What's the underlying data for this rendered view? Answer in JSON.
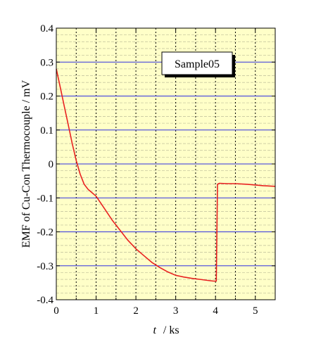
{
  "chart_data": {
    "type": "line",
    "title": "",
    "xlabel": "t  /  ks",
    "xlabel_var": "t",
    "xlabel_unit": "/  ks",
    "ylabel": "EMF of Cu-Con Thermocouple / mV",
    "xlim": [
      0,
      5.5
    ],
    "ylim": [
      -0.4,
      0.4
    ],
    "x_ticks": [
      "0",
      "1",
      "2",
      "3",
      "4",
      "5"
    ],
    "y_ticks": [
      "-0.4",
      "-0.3",
      "-0.2",
      "-0.1",
      "0",
      "0.1",
      "0.2",
      "0.3",
      "0.4"
    ],
    "legend_label": "Sample05",
    "legend_position": "top-right",
    "grid": true,
    "colors": {
      "background": "#ffffc8",
      "line": "#e82020",
      "major_grid": "#3030e0",
      "minor_grid": "#c8c8a0",
      "vertical_grid": "#000000"
    },
    "series": [
      {
        "name": "Sample05",
        "x": [
          0,
          0.1,
          0.2,
          0.3,
          0.4,
          0.5,
          0.6,
          0.7,
          0.8,
          0.9,
          1.0,
          1.2,
          1.4,
          1.6,
          1.8,
          2.0,
          2.2,
          2.4,
          2.6,
          2.8,
          3.0,
          3.2,
          3.4,
          3.6,
          3.8,
          3.95,
          4.02,
          4.05,
          4.1,
          4.3,
          4.5,
          4.8,
          5.0,
          5.2,
          5.5
        ],
        "y": [
          0.28,
          0.225,
          0.17,
          0.115,
          0.06,
          0.01,
          -0.03,
          -0.06,
          -0.075,
          -0.085,
          -0.095,
          -0.13,
          -0.165,
          -0.195,
          -0.225,
          -0.25,
          -0.27,
          -0.29,
          -0.305,
          -0.318,
          -0.328,
          -0.333,
          -0.337,
          -0.34,
          -0.343,
          -0.345,
          -0.345,
          -0.06,
          -0.057,
          -0.058,
          -0.058,
          -0.06,
          -0.062,
          -0.064,
          -0.066
        ]
      }
    ]
  }
}
